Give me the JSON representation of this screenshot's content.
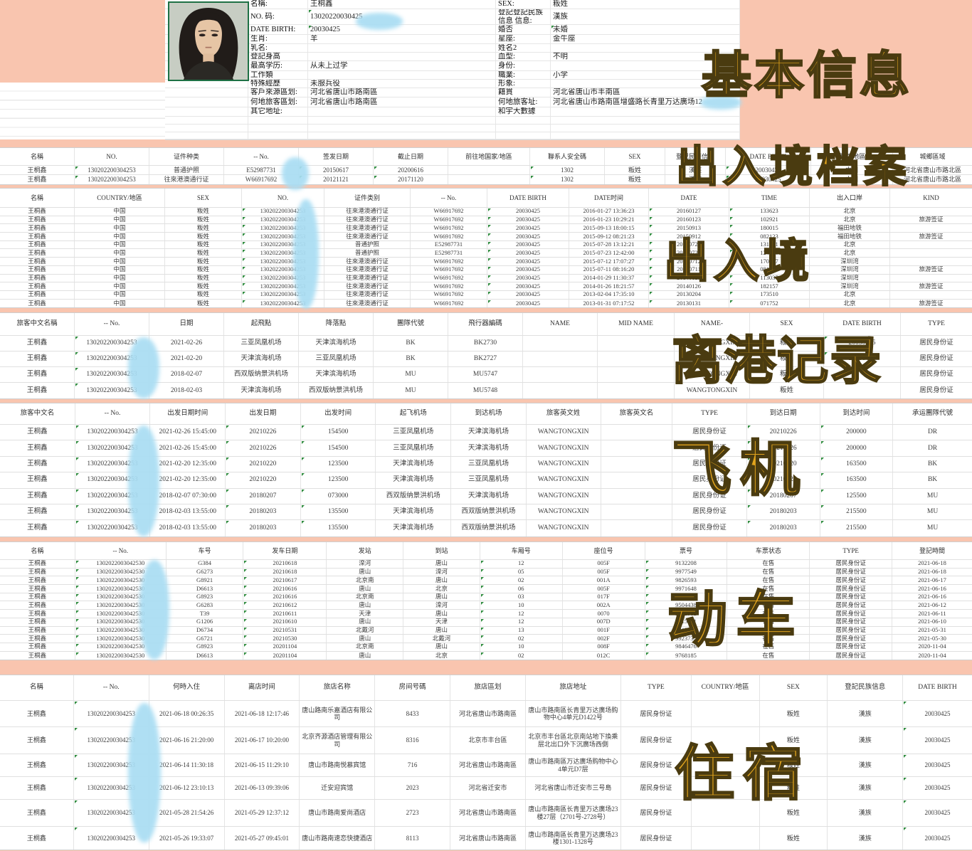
{
  "overlays": {
    "basic": "基本信息",
    "archive": "出入境档案",
    "entry": "出入境",
    "depart": "离港记录",
    "flight": "飞机",
    "train": "动车",
    "stay": "住宿"
  },
  "profile": {
    "left_fields": [
      {
        "label": "名稱:",
        "value": "王桐鑫",
        "marker": false
      },
      {
        "label": "NO. 码:",
        "value": "13020220030425",
        "marker": true
      },
      {
        "label": "DATE BIRTH:",
        "value": "20030425",
        "marker": true
      },
      {
        "label": "生肖:",
        "value": "羊",
        "marker": false
      },
      {
        "label": "乳名:",
        "value": "",
        "marker": false
      },
      {
        "label": "登記身高",
        "value": "",
        "marker": false
      },
      {
        "label": "最高学历:",
        "value": "从未上过学",
        "marker": false
      },
      {
        "label": "工作類",
        "value": "",
        "marker": false
      },
      {
        "label": "特殊經歷",
        "value": "未服兵役",
        "marker": false
      },
      {
        "label": "客戶來源區划:",
        "value": "河北省唐山市路南區",
        "marker": false
      },
      {
        "label": "何地旅客區划:",
        "value": "河北省唐山市路南區",
        "marker": false
      },
      {
        "label": "其它地址:",
        "value": "",
        "marker": false
      }
    ],
    "right_fields": [
      {
        "label": "SEX:",
        "value": "粄姓"
      },
      {
        "label": "登記登記民族信息 信息:",
        "value": "漢族"
      },
      {
        "label": "婚否",
        "value": "未婚"
      },
      {
        "label": "星座:",
        "value": "金牛座"
      },
      {
        "label": "姓名2",
        "value": ""
      },
      {
        "label": "血型:",
        "value": "不明"
      },
      {
        "label": "身份:",
        "value": ""
      },
      {
        "label": "職業:",
        "value": "小学"
      },
      {
        "label": "形象:",
        "value": ""
      },
      {
        "label": "籍貫",
        "value": "河北省唐山市丰南區"
      },
      {
        "label": "何地旅客址:",
        "value": "河北省唐山市路南區增盛路长青里万达廣场12"
      },
      {
        "label": "和宇大數據",
        "value": ""
      }
    ]
  },
  "tables": [
    {
      "name": "exit-entry-archive",
      "columns": [
        "名稱",
        "NO.",
        "证件种类",
        "-- No.",
        "签发日期",
        "截止日期",
        "前往地国家/地區",
        "聯系人安全碼",
        "SEX",
        "登記民族信息",
        "DATE BIRTH",
        "國家/地區",
        "城鄉區域"
      ],
      "rows": [
        [
          "王桐鑫",
          "130202200304253",
          "普通护照",
          "E52987731",
          "20150617",
          "20200616",
          "",
          "1302",
          "粄姓",
          "漢族",
          "20030425",
          "中国",
          "河北省唐山市路北區"
        ],
        [
          "王桐鑫",
          "130202200304253",
          "往來港澳通行证",
          "W66917692",
          "20121121",
          "20171120",
          "",
          "1302",
          "粄姓",
          "漢族",
          "20030425",
          "中国",
          "河北省唐山市路北區"
        ]
      ]
    },
    {
      "name": "exit-entry-records",
      "columns": [
        "名稱",
        "COUNTRY/地區",
        "SEX",
        "NO.",
        "证件类别",
        "-- No.",
        "DATE BIRTH",
        "DATE时间",
        "DATE",
        "TIME",
        "出入口岸",
        "KIND"
      ],
      "rows": [
        [
          "王桐鑫",
          "中国",
          "粄姓",
          "130202200304253",
          "往來港澳通行证",
          "W66917692",
          "20030425",
          "2016-01-27 13:36:23",
          "20160127",
          "133623",
          "北京",
          ""
        ],
        [
          "王桐鑫",
          "中国",
          "粄姓",
          "130202200304253",
          "往來港澳通行证",
          "W66917692",
          "20030425",
          "2016-01-23 10:29:21",
          "20160123",
          "102921",
          "北京",
          "旅游签证"
        ],
        [
          "王桐鑫",
          "中国",
          "粄姓",
          "130202200304253",
          "往來港澳通行证",
          "W66917692",
          "20030425",
          "2015-09-13 18:00:15",
          "20150913",
          "180015",
          "福田地铁",
          ""
        ],
        [
          "王桐鑫",
          "中国",
          "粄姓",
          "130202200304253",
          "往來港澳通行证",
          "W66917692",
          "20030425",
          "2015-09-12 08:21:23",
          "20150912",
          "082123",
          "福田地铁",
          "旅游签证"
        ],
        [
          "王桐鑫",
          "中国",
          "粄姓",
          "130202200304253",
          "普通护照",
          "E52987731",
          "20030425",
          "2015-07-28 13:12:21",
          "20150728",
          "131221",
          "北京",
          ""
        ],
        [
          "王桐鑫",
          "中国",
          "粄姓",
          "130202200304253",
          "普通护照",
          "E52987731",
          "20030425",
          "2015-07-23 12:42:00",
          "20150723",
          "124200",
          "北京",
          ""
        ],
        [
          "王桐鑫",
          "中国",
          "粄姓",
          "130202200304253",
          "往來港澳通行证",
          "W66917692",
          "20030425",
          "2015-07-12 17:07:27",
          "20150712",
          "170727",
          "深圳湾",
          ""
        ],
        [
          "王桐鑫",
          "中国",
          "粄姓",
          "130202200304253",
          "往來港澳通行证",
          "W66917692",
          "20030425",
          "2015-07-11 08:16:20",
          "20150711",
          "081620",
          "深圳湾",
          "旅游签证"
        ],
        [
          "王桐鑫",
          "中国",
          "粄姓",
          "130202200304253",
          "往來港澳通行证",
          "W66917692",
          "20030425",
          "2014-01-29 11:30:37",
          "20140129",
          "113037",
          "深圳湾",
          ""
        ],
        [
          "王桐鑫",
          "中国",
          "粄姓",
          "130202200304253",
          "往來港澳通行证",
          "W66917692",
          "20030425",
          "2014-01-26 18:21:57",
          "20140126",
          "182157",
          "深圳湾",
          "旅游签证"
        ],
        [
          "王桐鑫",
          "中国",
          "粄姓",
          "130202200304253",
          "往來港澳通行证",
          "W66917692",
          "20030425",
          "2013-02-04 17:35:10",
          "20130204",
          "173510",
          "北京",
          ""
        ],
        [
          "王桐鑫",
          "中国",
          "粄姓",
          "130202200304253",
          "往來港澳通行证",
          "W66917692",
          "20030425",
          "2013-01-31 07:17:52",
          "20130131",
          "071752",
          "北京",
          "旅游签证"
        ]
      ]
    },
    {
      "name": "departure-records",
      "columns": [
        "旅客中文名稱",
        "-- No.",
        "日期",
        "起飛點",
        "降落點",
        "團隊代號",
        "飛行器編碼",
        "NAME",
        "MID NAME",
        "NAME-",
        "SEX",
        "DATE BIRTH",
        "TYPE"
      ],
      "rows": [
        [
          "王桐鑫",
          "130202200304253",
          "2021-02-26",
          "三亚凤凰机场",
          "天津滨海机场",
          "BK",
          "BK2730",
          "",
          "",
          "WANGTONGXIN",
          "粄姓",
          "20030425",
          "居民身份证"
        ],
        [
          "王桐鑫",
          "130202200304253",
          "2021-02-20",
          "天津滨海机场",
          "三亚凤凰机场",
          "BK",
          "BK2727",
          "",
          "",
          "WANGTONGXIN",
          "粄姓",
          "20030425",
          "居民身份证"
        ],
        [
          "王桐鑫",
          "130202200304253",
          "2018-02-07",
          "西双版纳景洪机场",
          "天津滨海机场",
          "MU",
          "MU5747",
          "",
          "",
          "WANGTONGXIN",
          "粄姓",
          "",
          "居民身份证"
        ],
        [
          "王桐鑫",
          "130202200304253",
          "2018-02-03",
          "天津滨海机场",
          "西双版纳景洪机场",
          "MU",
          "MU5748",
          "",
          "",
          "WANGTONGXIN",
          "粄姓",
          "",
          "居民身份证"
        ]
      ]
    },
    {
      "name": "flights",
      "columns": [
        "旅客中文名",
        "-- No.",
        "出发日期时间",
        "出发日期",
        "出发时间",
        "起飞机场",
        "到达机场",
        "旅客英文姓",
        "旅客英文名",
        "TYPE",
        "到达日期",
        "到达时间",
        "承运團隊代號"
      ],
      "rows": [
        [
          "王桐鑫",
          "130202200304253",
          "2021-02-26 15:45:00",
          "20210226",
          "154500",
          "三亚凤凰机场",
          "天津滨海机场",
          "WANGTONGXIN",
          "",
          "居民身份证",
          "20210226",
          "200000",
          "DR"
        ],
        [
          "王桐鑫",
          "130202200304253",
          "2021-02-26 15:45:00",
          "20210226",
          "154500",
          "三亚凤凰机场",
          "天津滨海机场",
          "WANGTONGXIN",
          "",
          "居民身份证",
          "20210226",
          "200000",
          "DR"
        ],
        [
          "王桐鑫",
          "130202200304253",
          "2021-02-20 12:35:00",
          "20210220",
          "123500",
          "天津滨海机场",
          "三亚凤凰机场",
          "WANGTONGXIN",
          "",
          "居民身份证",
          "20210220",
          "163500",
          "BK"
        ],
        [
          "王桐鑫",
          "130202200304253",
          "2021-02-20 12:35:00",
          "20210220",
          "123500",
          "天津滨海机场",
          "三亚凤凰机场",
          "WANGTONGXIN",
          "",
          "居民身份证",
          "20210220",
          "163500",
          "BK"
        ],
        [
          "王桐鑫",
          "130202200304253",
          "2018-02-07 07:30:00",
          "20180207",
          "073000",
          "西双版纳景洪机场",
          "天津滨海机场",
          "WANGTONGXIN",
          "",
          "居民身份证",
          "20180207",
          "125500",
          "MU"
        ],
        [
          "王桐鑫",
          "130202200304253",
          "2018-02-03 13:55:00",
          "20180203",
          "135500",
          "天津滨海机场",
          "西双版纳景洪机场",
          "WANGTONGXIN",
          "",
          "居民身份证",
          "20180203",
          "215500",
          "MU"
        ],
        [
          "王桐鑫",
          "130202200304253",
          "2018-02-03 13:55:00",
          "20180203",
          "135500",
          "天津滨海机场",
          "西双版纳景洪机场",
          "WANGTONGXIN",
          "",
          "居民身份证",
          "20180203",
          "215500",
          "MU"
        ]
      ]
    },
    {
      "name": "trains",
      "columns": [
        "名稱",
        "-- No.",
        "车号",
        "发车日期",
        "发站",
        "到站",
        "车厢号",
        "座位号",
        "票号",
        "车票状态",
        "TYPE",
        "登記時間"
      ],
      "rows": [
        [
          "王桐鑫",
          "1302022003042530",
          "G384",
          "20210618",
          "滦河",
          "唐山",
          "12",
          "005F",
          "9132208",
          "在售",
          "居民身份证",
          "2021-06-18"
        ],
        [
          "王桐鑫",
          "1302022003042530",
          "G6273",
          "20210618",
          "唐山",
          "滦河",
          "05",
          "005F",
          "9977549",
          "在售",
          "居民身份证",
          "2021-06-18"
        ],
        [
          "王桐鑫",
          "1302022003042530",
          "G8921",
          "20210617",
          "北京南",
          "唐山",
          "02",
          "001A",
          "9826593",
          "在售",
          "居民身份证",
          "2021-06-17"
        ],
        [
          "王桐鑫",
          "1302022003042530",
          "D6613",
          "20210616",
          "唐山",
          "北京",
          "06",
          "005F",
          "9971648",
          "在售",
          "居民身份证",
          "2021-06-16"
        ],
        [
          "王桐鑫",
          "1302022003042530",
          "G8923",
          "20210616",
          "北京南",
          "唐山",
          "03",
          "017F",
          "9804925",
          "在售",
          "居民身份证",
          "2021-06-16"
        ],
        [
          "王桐鑫",
          "1302022003042530",
          "G6283",
          "20210612",
          "唐山",
          "滦河",
          "10",
          "002A",
          "9504438",
          "在售",
          "居民身份证",
          "2021-06-12"
        ],
        [
          "王桐鑫",
          "1302022003042530",
          "T39",
          "20210611",
          "天津",
          "唐山",
          "12",
          "0070",
          "9712912",
          "在售",
          "居民身份证",
          "2021-06-11"
        ],
        [
          "王桐鑫",
          "1302022003042530",
          "G1206",
          "20210610",
          "唐山",
          "天津",
          "12",
          "007D",
          "9915991",
          "在售",
          "居民身份证",
          "2021-06-10"
        ],
        [
          "王桐鑫",
          "1302022003042530",
          "D6734",
          "20210531",
          "北戴河",
          "唐山",
          "13",
          "001F",
          "9912611",
          "在售",
          "居民身份证",
          "2021-05-31"
        ],
        [
          "王桐鑫",
          "1302022003042530",
          "G6721",
          "20210530",
          "唐山",
          "北戴河",
          "02",
          "002F",
          "9923735",
          "在售",
          "居民身份证",
          "2021-05-30"
        ],
        [
          "王桐鑫",
          "1302022003042530",
          "G8923",
          "20201104",
          "北京南",
          "唐山",
          "10",
          "008F",
          "9846476",
          "在售",
          "居民身份证",
          "2020-11-04"
        ],
        [
          "王桐鑫",
          "1302022003042530",
          "D6613",
          "20201104",
          "唐山",
          "北京",
          "02",
          "012C",
          "9768185",
          "在售",
          "居民身份证",
          "2020-11-04"
        ]
      ]
    },
    {
      "name": "accommodation",
      "columns": [
        "名稱",
        "-- No.",
        "何時入住",
        "离店时间",
        "旅店名称",
        "房间号碼",
        "旅店區划",
        "旅店地址",
        "TYPE",
        "COUNTRY/地區",
        "SEX",
        "登記民族信息",
        "DATE BIRTH"
      ],
      "rows": [
        [
          "王桐鑫",
          "130202200304253",
          "2021-06-18 00:26:35",
          "2021-06-18 12:17:46",
          "唐山路南乐嘉酒店有限公司",
          "8433",
          "河北省唐山市路南區",
          "唐山市路南區长青里万达廣场购物中心4单元D1422号",
          "居民身份证",
          "",
          "粄姓",
          "漢族",
          "20030425"
        ],
        [
          "王桐鑫",
          "130202200304253",
          "2021-06-16 21:20:00",
          "2021-06-17 10:20:00",
          "北京齐源酒店管理有限公司",
          "8316",
          "北京市丰台區",
          "北京市丰台區北京南站地下換乘层北出口外下沉廣场西側",
          "居民身份证",
          "",
          "粄姓",
          "漢族",
          "20030425"
        ],
        [
          "王桐鑫",
          "130202200304253",
          "2021-06-14 11:30:18",
          "2021-06-15 11:29:10",
          "唐山市路南悦慕宾馆",
          "716",
          "河北省唐山市路南區",
          "唐山市路南區万达廣场购物中心4单元D7层",
          "居民身份证",
          "",
          "粄姓",
          "漢族",
          "20030425"
        ],
        [
          "王桐鑫",
          "130202200304253",
          "2021-06-12 23:10:13",
          "2021-06-13 09:39:06",
          "迁安迎宾馆",
          "2023",
          "河北省迁安市",
          "河北省唐山市迁安市三号島",
          "居民身份证",
          "",
          "粄姓",
          "漢族",
          "20030425"
        ],
        [
          "王桐鑫",
          "130202200304253",
          "2021-05-28 21:54:26",
          "2021-05-29 12:37:12",
          "唐山市路南爱尚酒店",
          "2723",
          "河北省唐山市路南區",
          "唐山市路南區长青里万达廣场23楼27层（2701号-2728号）",
          "居民身份证",
          "",
          "粄姓",
          "漢族",
          "20030425"
        ],
        [
          "王桐鑫",
          "130202200304253",
          "2021-05-26 19:33:07",
          "2021-05-27 09:45:01",
          "唐山市路南速恋快捷酒店",
          "8113",
          "河北省唐山市路南區",
          "唐山市路南區长青里万达廣场23楼1301-1328号",
          "居民身份证",
          "",
          "粄姓",
          "漢族",
          "20030425"
        ]
      ]
    }
  ]
}
